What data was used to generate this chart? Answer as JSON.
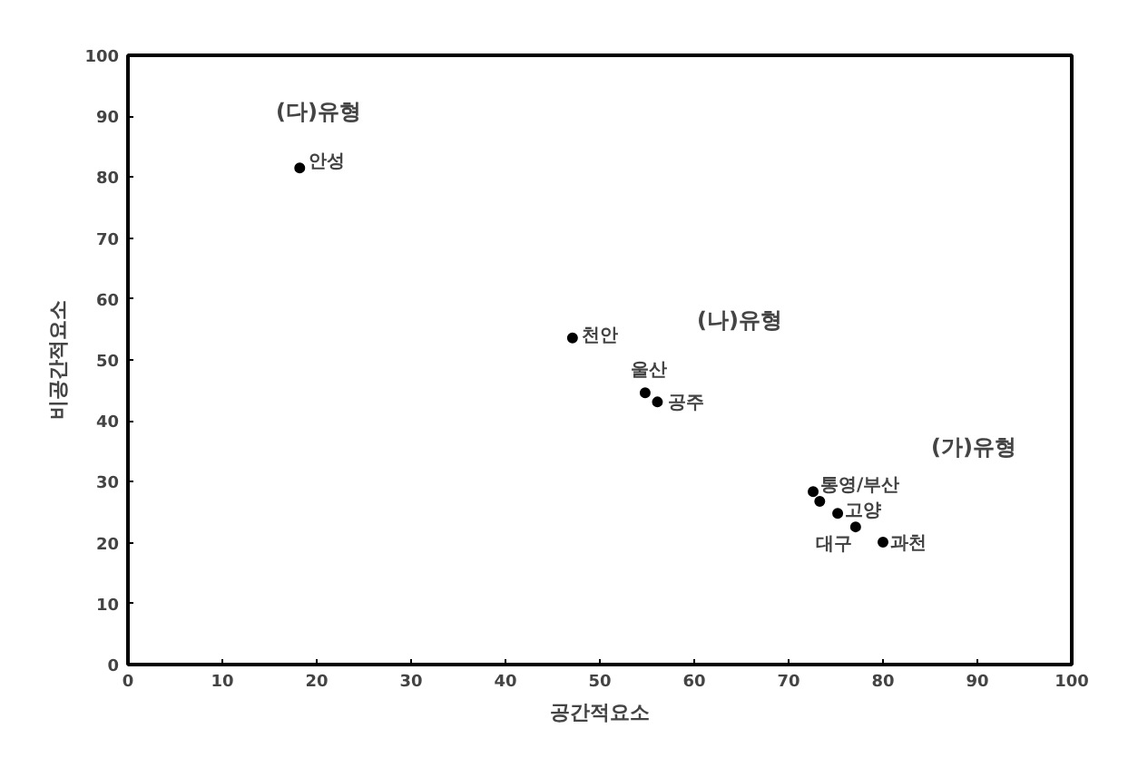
{
  "chart_data": {
    "type": "scatter",
    "xlabel": "공간적요소",
    "ylabel": "비공간적요소",
    "x": [
      18.2,
      47.1,
      54.8,
      56.1,
      72.6,
      73.3,
      75.2,
      77.1,
      80.0
    ],
    "series": [
      {
        "color": "#000000",
        "values": [
          81.5,
          53.6,
          44.6,
          43.1,
          28.4,
          26.8,
          24.8,
          22.6,
          20.1
        ]
      }
    ],
    "marker": "circle",
    "grid": false,
    "xlim": [
      0,
      100
    ],
    "ylim": [
      0,
      100
    ],
    "xticks": [
      0,
      10,
      20,
      30,
      40,
      50,
      60,
      70,
      80,
      90,
      100
    ],
    "yticks": [
      0,
      10,
      20,
      30,
      40,
      50,
      60,
      70,
      80,
      90,
      100
    ],
    "annotations": [
      "(다)유형",
      "(나)유형",
      "(가)유형",
      {
        "text": "안성",
        "x": 18.2,
        "y": 81.5
      },
      {
        "text": "천안",
        "x": 47.1,
        "y": 53.6
      },
      {
        "text": "울산",
        "x": 54.8,
        "y": 44.6
      },
      {
        "text": "공주",
        "x": 56.1,
        "y": 43.1
      },
      {
        "text": "통영/부산",
        "x": 72.6,
        "y": 28.4
      },
      {
        "text": "고양",
        "x": 75.2,
        "y": 24.8
      },
      {
        "text": "대구",
        "x": 77.1,
        "y": 22.6
      },
      {
        "text": "과천",
        "x": 80.0,
        "y": 20.1
      }
    ]
  }
}
